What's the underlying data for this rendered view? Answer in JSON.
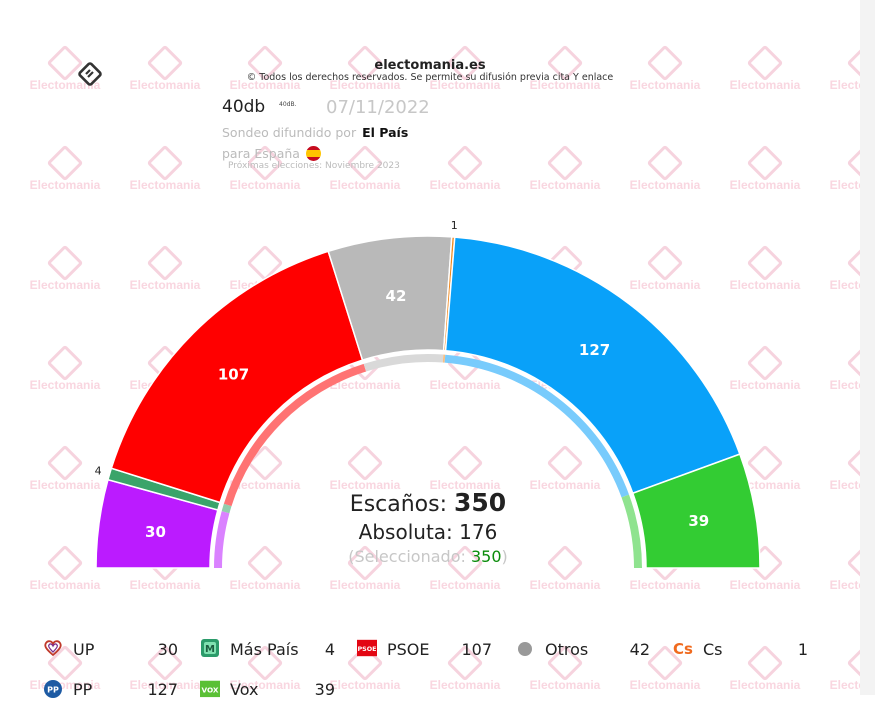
{
  "header": {
    "site": "electomania.es",
    "copyright": "© Todos los derechos reservados. Se permite su difusión previa cita Y enlace",
    "pollster": "40db",
    "pollster_mini": "40dB.",
    "date": "07/11/2022",
    "published_by_prefix": "Sondeo difundido por",
    "published_by": "El País",
    "scope": "para España",
    "next_election": "Próximas elecciones: Noviembre 2023",
    "watermark": "Electomania"
  },
  "summary": {
    "seats_label": "Escaños:",
    "seats_total": "350",
    "majority_label": "Absoluta:",
    "majority": "176",
    "selected_prefix": "(Seleccionado:",
    "selected": "350",
    "selected_suffix": ")"
  },
  "chart_data": {
    "type": "pie",
    "subtype": "hemicycle",
    "total": 350,
    "majority": 176,
    "series": [
      {
        "name": "UP",
        "value": 30,
        "color": "#bb1bff",
        "label": "30"
      },
      {
        "name": "Más País",
        "value": 4,
        "color": "#3aa46a",
        "label": "4"
      },
      {
        "name": "PSOE",
        "value": 107,
        "color": "#ff0000",
        "label": "107"
      },
      {
        "name": "Otros",
        "value": 42,
        "color": "#b9b9b9",
        "label": "42"
      },
      {
        "name": "Cs",
        "value": 1,
        "color": "#f08a20",
        "label": "1"
      },
      {
        "name": "PP",
        "value": 127,
        "color": "#09a1f9",
        "label": "127"
      },
      {
        "name": "Vox",
        "value": 39,
        "color": "#33cc33",
        "label": "39"
      }
    ]
  },
  "legend": [
    {
      "name": "UP",
      "value": "30",
      "icon": "heart-icon"
    },
    {
      "name": "Más País",
      "value": "4",
      "icon": "mas-pais-icon"
    },
    {
      "name": "PSOE",
      "value": "107",
      "icon": "psoe-icon"
    },
    {
      "name": "Otros",
      "value": "42",
      "icon": "dot-icon"
    },
    {
      "name": "Cs",
      "value": "1",
      "icon": "cs-icon"
    },
    {
      "name": "PP",
      "value": "127",
      "icon": "pp-icon"
    },
    {
      "name": "Vox",
      "value": "39",
      "icon": "vox-icon"
    }
  ]
}
